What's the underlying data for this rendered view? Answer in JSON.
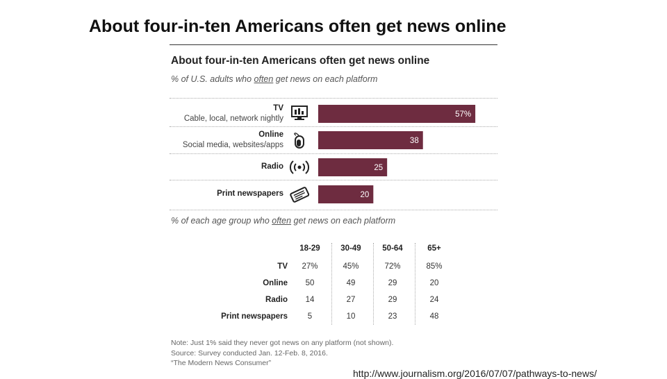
{
  "slide": {
    "title": "About four-in-ten Americans often get news online",
    "url": "http://www.journalism.org/2016/07/07/pathways-to-news/"
  },
  "chart_data": {
    "type": "bar",
    "title": "About four-in-ten Americans often get news online",
    "subtitle_prefix": "% of U.S. adults who ",
    "subtitle_emph": "often",
    "subtitle_suffix": " get news on each platform",
    "categories": [
      "TV",
      "Online",
      "Radio",
      "Print newspapers"
    ],
    "category_sublabels": [
      "Cable, local, network nightly",
      "Social media, websites/apps",
      "",
      ""
    ],
    "values": [
      57,
      38,
      25,
      20
    ],
    "value_labels": [
      "57%",
      "38",
      "25",
      "20"
    ],
    "icons": [
      "tv-icon",
      "mouse-icon",
      "radio-waves-icon",
      "newspaper-icon"
    ],
    "bar_color": "#6e2c40",
    "xlim": [
      0,
      60
    ],
    "table": {
      "subtitle_prefix": "% of each age group who ",
      "subtitle_emph": "often",
      "subtitle_suffix": " get news on each platform",
      "columns": [
        "18-29",
        "30-49",
        "50-64",
        "65+"
      ],
      "rows": [
        {
          "label": "TV",
          "values": [
            "27%",
            "45%",
            "72%",
            "85%"
          ]
        },
        {
          "label": "Online",
          "values": [
            "50",
            "49",
            "29",
            "20"
          ]
        },
        {
          "label": "Radio",
          "values": [
            "14",
            "27",
            "29",
            "24"
          ]
        },
        {
          "label": "Print newspapers",
          "values": [
            "5",
            "10",
            "23",
            "48"
          ]
        }
      ]
    },
    "notes": [
      "Note: Just 1% said they never got news on any platform (not shown).",
      "Source: Survey conducted Jan. 12-Feb. 8, 2016.",
      "“The Modern News Consumer”"
    ]
  }
}
